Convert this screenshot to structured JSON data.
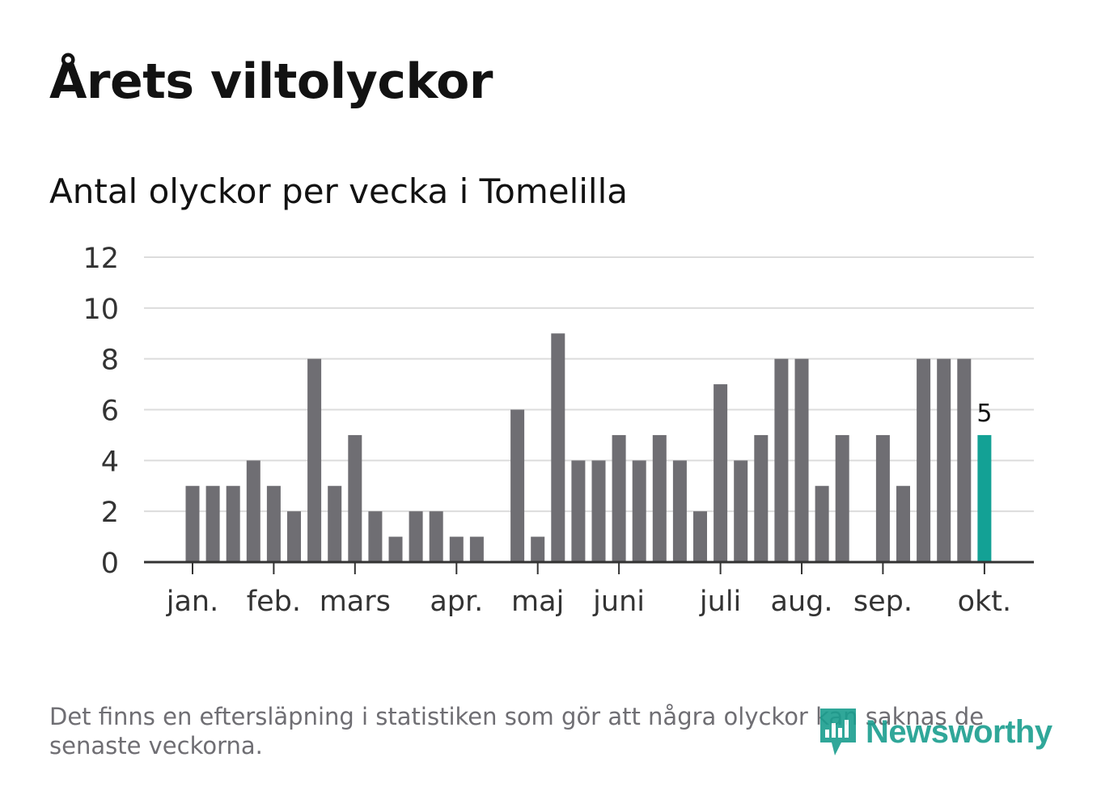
{
  "title": "Årets viltolyckor",
  "subtitle": "Antal olyckor per vecka i Tomelilla",
  "footnote": "Det finns en eftersläpning i statistiken som gör att några olyckor kan saknas de senaste veckorna.",
  "brand": {
    "name": "Newsworthy",
    "color": "#1a9e8f"
  },
  "colors": {
    "bar": "#6f6e73",
    "highlight": "#13a195",
    "grid": "#dcdcdc",
    "axis": "#333333",
    "text": "#333333"
  },
  "chart_data": {
    "type": "bar",
    "title": "Antal olyckor per vecka i Tomelilla",
    "xlabel": "",
    "ylabel": "",
    "ylim": [
      0,
      12
    ],
    "yticks": [
      0,
      2,
      4,
      6,
      8,
      10,
      12
    ],
    "grid": true,
    "weeks": [
      1,
      2,
      3,
      4,
      5,
      6,
      7,
      8,
      9,
      10,
      11,
      12,
      13,
      14,
      15,
      16,
      17,
      18,
      19,
      20,
      21,
      22,
      23,
      24,
      25,
      26,
      27,
      28,
      29,
      30,
      31,
      32,
      33,
      34,
      35,
      36,
      37,
      38,
      39,
      40
    ],
    "values": [
      3,
      3,
      3,
      4,
      3,
      2,
      8,
      3,
      5,
      2,
      1,
      2,
      2,
      1,
      1,
      0,
      6,
      1,
      9,
      4,
      4,
      5,
      4,
      5,
      4,
      2,
      7,
      4,
      5,
      8,
      8,
      3,
      5,
      0,
      5,
      3,
      8,
      8,
      8,
      5
    ],
    "highlight_last": true,
    "last_value_label": "5",
    "month_ticks": [
      {
        "label": "jan.",
        "week": 1
      },
      {
        "label": "feb.",
        "week": 5
      },
      {
        "label": "mars",
        "week": 9
      },
      {
        "label": "apr.",
        "week": 14
      },
      {
        "label": "maj",
        "week": 18
      },
      {
        "label": "juni",
        "week": 22
      },
      {
        "label": "juli",
        "week": 27
      },
      {
        "label": "aug.",
        "week": 31
      },
      {
        "label": "sep.",
        "week": 35
      },
      {
        "label": "okt.",
        "week": 40
      }
    ]
  }
}
